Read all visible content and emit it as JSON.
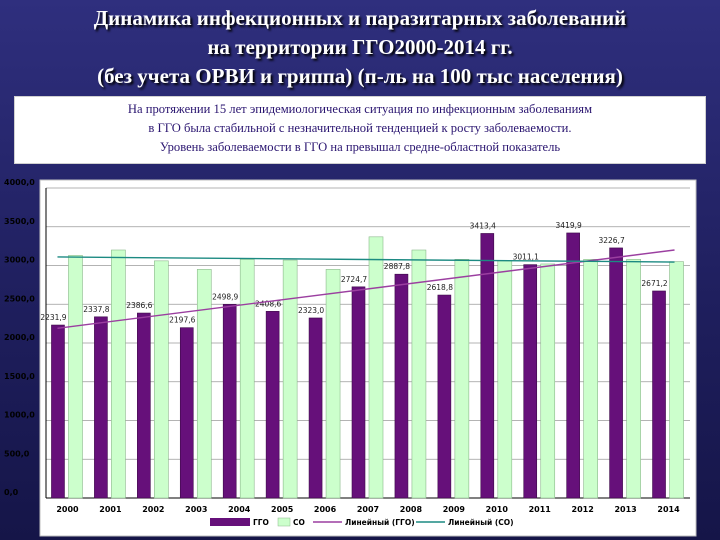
{
  "slide": {
    "title_lines": [
      "Динамика инфекционных и паразитарных заболеваний",
      "на территории ГГО2000-2014 гг.",
      "(без учета ОРВИ и гриппа) (п-ль на 100 тыс населения)"
    ],
    "summary_lines": [
      "На протяжении 15 лет эпидемиологическая ситуация по инфекционным заболеваниям",
      "в   ГГО      была стабильной с незначительной тенденцией к росту заболеваемости.",
      "Уровень заболеваемости в ГГО на   превышал средне-областной показатель"
    ]
  },
  "chart_data": {
    "type": "bar",
    "categories": [
      "2000",
      "2001",
      "2002",
      "2003",
      "2004",
      "2005",
      "2006",
      "2007",
      "2008",
      "2009",
      "2010",
      "2011",
      "2012",
      "2013",
      "2014"
    ],
    "series": [
      {
        "name": "ГГО",
        "color": "#66107a",
        "values": [
          2231.9,
          2337.8,
          2386.6,
          2197.6,
          2498.9,
          2408.6,
          2323.0,
          2724.7,
          2887.8,
          2618.8,
          3413.4,
          3011.1,
          3419.9,
          3226.7,
          2671.2
        ]
      },
      {
        "name": "СО",
        "color": "#ccffcc",
        "values": [
          3130,
          3200,
          3060,
          2950,
          3080,
          3070,
          2950,
          3370,
          3200,
          3080,
          3060,
          3020,
          3080,
          3080,
          3050
        ]
      }
    ],
    "trendlines": [
      {
        "name": "Линейный (ГГО)",
        "color": "#9b3fa0",
        "from": 2190,
        "to": 3200
      },
      {
        "name": "Линейный (СО)",
        "color": "#1c8a82",
        "from": 3110,
        "to": 3045
      }
    ],
    "value_labels": [
      "2231,9",
      "2337,8",
      "2386,6",
      "2197,6",
      "2498,9",
      "2408,6",
      "2323,0",
      "2724,7",
      "2887,8",
      "2618,8",
      "3413,4",
      "3011,1",
      "3419,9",
      "3226,7",
      "2671,2"
    ],
    "y_ticks": [
      "0,0",
      "500,0",
      "1000,0",
      "1500,0",
      "2000,0",
      "2500,0",
      "3000,0",
      "3500,0",
      "4000,0"
    ],
    "ylim": [
      0,
      4000
    ],
    "grid": true,
    "legend_position": "bottom",
    "legend": [
      "ГГО",
      "СО",
      "Линейный (ГГО)",
      "Линейный (СО)"
    ],
    "title": "",
    "xlabel": "",
    "ylabel": ""
  }
}
